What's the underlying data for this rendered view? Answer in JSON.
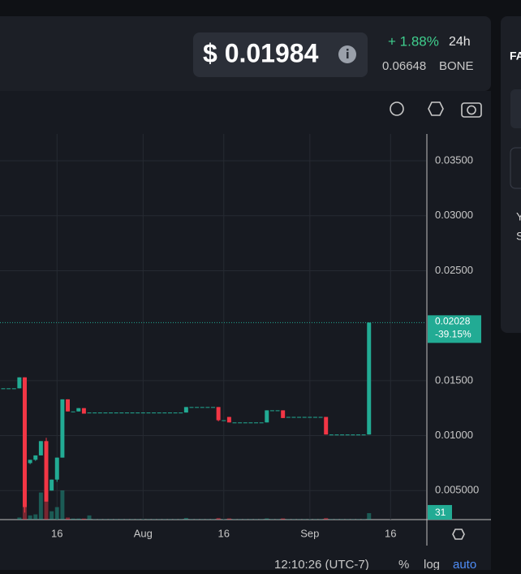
{
  "header": {
    "price": "$ 0.01984",
    "change": "+ 1.88%",
    "period": "24h",
    "pair_price": "0.06648",
    "pair_symbol": "BONE"
  },
  "side": {
    "title": "FA",
    "line1": "Y",
    "line2": "S"
  },
  "footer": {
    "time": "12:10:26 (UTC-7)",
    "percent": "%",
    "log": "log",
    "auto": "auto"
  },
  "chart_data": {
    "type": "candlestick",
    "categories": [
      null,
      null,
      null,
      null,
      null,
      null,
      null,
      null,
      null,
      null,
      null,
      null,
      null,
      null,
      null,
      null,
      null,
      null,
      null,
      null,
      null,
      null,
      null,
      null,
      null,
      null,
      null,
      null,
      null,
      null,
      null,
      null,
      null,
      null,
      null,
      null,
      null,
      null,
      null,
      null,
      null,
      null,
      null,
      null,
      null,
      null,
      null,
      null,
      null,
      null,
      null,
      null,
      null,
      null,
      null,
      null,
      null,
      null,
      null,
      null,
      null,
      null,
      null,
      null,
      null,
      null,
      null,
      null,
      null
    ],
    "ohlc": [
      [
        0.0143,
        0.0143,
        0.0143,
        0.0143
      ],
      [
        0.0143,
        0.0143,
        0.0143,
        0.0143
      ],
      [
        0.0143,
        0.0143,
        0.0143,
        0.0143
      ],
      [
        0.0143,
        0.0153,
        0.0143,
        0.0153
      ],
      [
        0.0153,
        0.0153,
        0.003,
        0.0035
      ],
      [
        0.0075,
        0.0078,
        0.0074,
        0.0078
      ],
      [
        0.0078,
        0.0082,
        0.0077,
        0.0082
      ],
      [
        0.0082,
        0.0095,
        0.0082,
        0.0095
      ],
      [
        0.0095,
        0.0098,
        0.004,
        0.004
      ],
      [
        0.005,
        0.006,
        0.005,
        0.006
      ],
      [
        0.006,
        0.008,
        0.0058,
        0.008
      ],
      [
        0.008,
        0.0133,
        0.008,
        0.0133
      ],
      [
        0.0133,
        0.0133,
        0.0122,
        0.0122
      ],
      [
        0.0122,
        0.0122,
        0.0122,
        0.0122
      ],
      [
        0.0122,
        0.0125,
        0.0122,
        0.0125
      ],
      [
        0.0125,
        0.0125,
        0.012,
        0.012
      ],
      [
        0.0121,
        0.0121,
        0.0121,
        0.0121
      ],
      [
        0.0121,
        0.0121,
        0.0121,
        0.0121
      ],
      [
        0.0121,
        0.0121,
        0.0121,
        0.0121
      ],
      [
        0.0121,
        0.0121,
        0.0121,
        0.0121
      ],
      [
        0.0121,
        0.0121,
        0.0121,
        0.0121
      ],
      [
        0.0121,
        0.0121,
        0.0121,
        0.0121
      ],
      [
        0.0121,
        0.0121,
        0.0121,
        0.0121
      ],
      [
        0.0121,
        0.0121,
        0.0121,
        0.0121
      ],
      [
        0.0121,
        0.0121,
        0.0121,
        0.0121
      ],
      [
        0.0121,
        0.0121,
        0.0121,
        0.0121
      ],
      [
        0.0121,
        0.0121,
        0.0121,
        0.0121
      ],
      [
        0.0121,
        0.0121,
        0.0121,
        0.0121
      ],
      [
        0.0121,
        0.0121,
        0.0121,
        0.0121
      ],
      [
        0.0121,
        0.0121,
        0.0121,
        0.0121
      ],
      [
        0.0121,
        0.0121,
        0.0121,
        0.0121
      ],
      [
        0.0121,
        0.0121,
        0.0121,
        0.0121
      ],
      [
        0.0121,
        0.0121,
        0.0121,
        0.0121
      ],
      [
        0.0121,
        0.0121,
        0.0121,
        0.0121
      ],
      [
        0.0121,
        0.0126,
        0.0121,
        0.0126
      ],
      [
        0.0126,
        0.0126,
        0.0126,
        0.0126
      ],
      [
        0.0126,
        0.0126,
        0.0126,
        0.0126
      ],
      [
        0.0126,
        0.0126,
        0.0126,
        0.0126
      ],
      [
        0.0126,
        0.0126,
        0.0126,
        0.0126
      ],
      [
        0.0126,
        0.0126,
        0.0126,
        0.0126
      ],
      [
        0.0126,
        0.0126,
        0.0113,
        0.0114
      ],
      [
        0.0114,
        0.0114,
        0.0114,
        0.0114
      ],
      [
        0.0117,
        0.0117,
        0.0112,
        0.0112
      ],
      [
        0.0112,
        0.0112,
        0.0112,
        0.0112
      ],
      [
        0.0112,
        0.0112,
        0.0112,
        0.0112
      ],
      [
        0.0112,
        0.0112,
        0.0112,
        0.0112
      ],
      [
        0.0112,
        0.0112,
        0.0112,
        0.0112
      ],
      [
        0.0112,
        0.0112,
        0.0112,
        0.0112
      ],
      [
        0.0112,
        0.0112,
        0.0112,
        0.0112
      ],
      [
        0.0112,
        0.0123,
        0.0112,
        0.0123
      ],
      [
        0.0123,
        0.0123,
        0.0123,
        0.0123
      ],
      [
        0.0123,
        0.0123,
        0.0123,
        0.0123
      ],
      [
        0.0123,
        0.0123,
        0.0116,
        0.0116
      ],
      [
        0.0117,
        0.0117,
        0.0117,
        0.0117
      ],
      [
        0.0117,
        0.0117,
        0.0117,
        0.0117
      ],
      [
        0.0117,
        0.0117,
        0.0117,
        0.0117
      ],
      [
        0.0117,
        0.0117,
        0.0117,
        0.0117
      ],
      [
        0.0117,
        0.0117,
        0.0117,
        0.0117
      ],
      [
        0.0117,
        0.0117,
        0.0117,
        0.0117
      ],
      [
        0.0117,
        0.0117,
        0.0117,
        0.0117
      ],
      [
        0.0117,
        0.0117,
        0.0101,
        0.0101
      ],
      [
        0.0101,
        0.0101,
        0.0101,
        0.0101
      ],
      [
        0.0101,
        0.0101,
        0.0101,
        0.0101
      ],
      [
        0.0101,
        0.0101,
        0.0101,
        0.0101
      ],
      [
        0.0101,
        0.0101,
        0.0101,
        0.0101
      ],
      [
        0.0101,
        0.0101,
        0.0101,
        0.0101
      ],
      [
        0.0101,
        0.0101,
        0.0101,
        0.0101
      ],
      [
        0.0101,
        0.0101,
        0.0101,
        0.0101
      ],
      [
        0.0101,
        0.0203,
        0.0101,
        0.02028
      ]
    ],
    "volume": [
      0,
      0,
      0,
      10,
      270,
      20,
      25,
      130,
      180,
      40,
      60,
      140,
      10,
      5,
      5,
      5,
      20,
      2,
      2,
      2,
      2,
      2,
      2,
      2,
      2,
      2,
      2,
      2,
      2,
      2,
      2,
      2,
      2,
      2,
      8,
      2,
      2,
      2,
      2,
      2,
      8,
      2,
      6,
      2,
      2,
      2,
      2,
      2,
      2,
      6,
      2,
      2,
      6,
      2,
      2,
      2,
      2,
      2,
      2,
      2,
      8,
      2,
      2,
      2,
      2,
      2,
      2,
      2,
      31
    ],
    "volume_lim": [
      0,
      300
    ],
    "up_color": "#22ab94",
    "down_color": "#f23645",
    "last_price_label": "0.02028",
    "last_change_label": "-39.15%",
    "last_volume_label": "31",
    "xlim": [
      -0.6,
      78.6
    ],
    "xticks": [
      {
        "value": 10,
        "label": "16"
      },
      {
        "value": 26,
        "label": "Aug"
      },
      {
        "value": 41,
        "label": "16"
      },
      {
        "value": 57,
        "label": "Sep"
      },
      {
        "value": 72,
        "label": "16"
      }
    ],
    "ylim": [
      0.00236,
      0.03744
    ],
    "yticks": [
      {
        "value": 0.035,
        "label": "0.03500"
      },
      {
        "value": 0.03,
        "label": "0.03000"
      },
      {
        "value": 0.025,
        "label": "0.02500"
      },
      {
        "value": 0.015,
        "label": "0.01500"
      },
      {
        "value": 0.01,
        "label": "0.01000"
      },
      {
        "value": 0.005,
        "label": "0.005000"
      }
    ],
    "grid": true
  }
}
